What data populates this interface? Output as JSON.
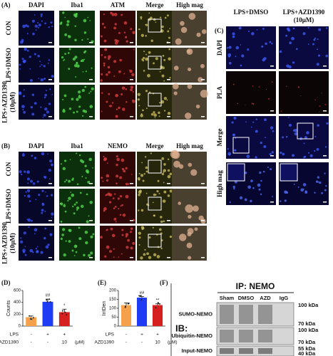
{
  "panel_a": {
    "label": "(A)",
    "columns": [
      "DAPI",
      "Iba1",
      "ATM",
      "Merge",
      "High mag"
    ],
    "column_colors": [
      "#3557d6",
      "#3a9a2a",
      "#d01e1e",
      "#111111",
      "#111111"
    ],
    "rows": [
      [
        "CON"
      ],
      [
        "LPS+DMSO"
      ],
      [
        "LPS+AZD1390",
        "(10μM)"
      ]
    ]
  },
  "panel_b": {
    "label": "(B)",
    "columns": [
      "DAPI",
      "Iba1",
      "NEMO",
      "Merge",
      "High mag"
    ],
    "column_colors": [
      "#3557d6",
      "#3a9a2a",
      "#d01e1e",
      "#111111",
      "#111111"
    ],
    "rows": [
      [
        "CON"
      ],
      [
        "LPS+DMSO"
      ],
      [
        "LPS+AZD1390",
        "(10μM)"
      ]
    ]
  },
  "panel_c": {
    "label": "(C)",
    "columns": [
      [
        "LPS+DMSO"
      ],
      [
        "LPS+AZD1390",
        "(10μM)"
      ]
    ],
    "rows": [
      "DAPI",
      "PLA",
      "Merge",
      "High mag"
    ],
    "row_colors": [
      "#3557d6",
      "#d01e1e",
      "#111111",
      "#111111"
    ]
  },
  "chart_data": [
    {
      "type": "bar",
      "label": "(D)",
      "ylabel": "Counts",
      "values": [
        150,
        410,
        235
      ],
      "errors": [
        20,
        45,
        50
      ],
      "colors": [
        "#f5a04a",
        "#1f3cf5",
        "#d62020"
      ],
      "annotations": [
        null,
        "##",
        "*"
      ],
      "ylim": [
        0,
        600
      ],
      "yticks": [
        0,
        200,
        400,
        600
      ],
      "treatments": [
        {
          "name": "LPS",
          "levels": [
            "-",
            "+",
            "+"
          ]
        },
        {
          "name": "AZD1390",
          "levels": [
            "-",
            "-",
            "10"
          ],
          "unit": "(μM)"
        }
      ]
    },
    {
      "type": "bar",
      "label": "(E)",
      "ylabel": "IntDen",
      "values": [
        118,
        160,
        118
      ],
      "errors": [
        12,
        6,
        7
      ],
      "colors": [
        "#f5a04a",
        "#1f3cf5",
        "#d62020"
      ],
      "annotations": [
        null,
        "##",
        "**"
      ],
      "ylim": [
        0,
        200
      ],
      "yticks": [
        0,
        50,
        100,
        150,
        200
      ],
      "treatments": [
        {
          "name": "LPS",
          "levels": [
            "-",
            "+",
            "+"
          ]
        },
        {
          "name": "AZD1390",
          "levels": [
            "-",
            "-",
            "10"
          ],
          "unit": "(μM)"
        }
      ]
    }
  ],
  "panel_f": {
    "label": "(F)",
    "title": "IP: NEMO",
    "method": "IB:",
    "lanes": [
      "Sham",
      "DMSO",
      "AZD",
      "IgG"
    ],
    "blots": [
      {
        "name": "SUMO-NEMO",
        "markers": [
          "100 kDa",
          "70 kDa"
        ]
      },
      {
        "name": "Ubiquitin-NEMO",
        "markers": [
          "100 kDa",
          "70 kDa"
        ]
      },
      {
        "name": "Input-NEMO",
        "markers": [
          "55 kDa",
          "40 kDa"
        ]
      }
    ]
  }
}
